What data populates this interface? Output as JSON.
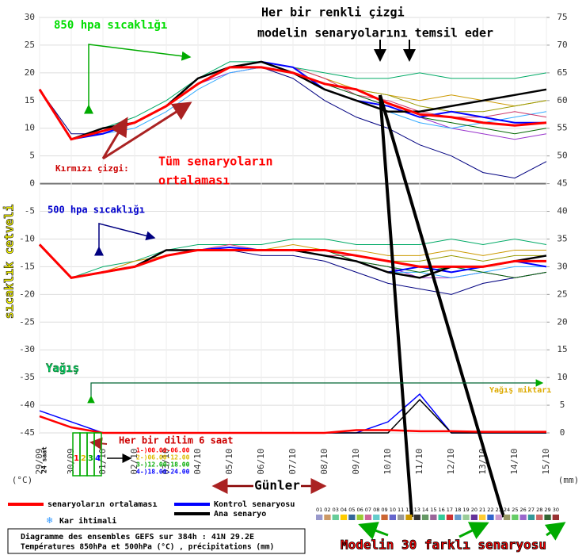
{
  "chart_data": {
    "type": "line",
    "x": [
      "29/09",
      "30/09",
      "01/10",
      "02/10",
      "03/10",
      "04/10",
      "05/10",
      "06/10",
      "07/10",
      "08/10",
      "09/10",
      "10/10",
      "11/10",
      "12/10",
      "13/10",
      "14/10",
      "15/10"
    ],
    "ylim": [
      -45,
      30
    ],
    "yticks": [
      30,
      25,
      20,
      15,
      10,
      5,
      0,
      -5,
      -10,
      -15,
      -20,
      -25,
      -30,
      -35,
      -40,
      -45
    ],
    "y2lim": [
      0,
      75
    ],
    "y2ticks": [
      75,
      70,
      65,
      60,
      55,
      50,
      45,
      40,
      35,
      30,
      25,
      20,
      15,
      10,
      5,
      0
    ],
    "ylabel": "(°C)",
    "y2label": "(mm)",
    "grid": true,
    "series": [
      {
        "name": "senaryoların ortalaması",
        "color": "#ff0000",
        "values_850": [
          17,
          8,
          9.5,
          11,
          14,
          18,
          21,
          21,
          20,
          18,
          17,
          14.5,
          12.5,
          12,
          11,
          10.5,
          11
        ],
        "values_500": [
          -11,
          -17,
          -16,
          -15,
          -13,
          -12,
          -12,
          -12,
          -12,
          -12,
          -13,
          -14,
          -15,
          -15,
          -15,
          -14,
          -14
        ],
        "precip": [
          3,
          1,
          0,
          0,
          0,
          0,
          0,
          0,
          0,
          0,
          0.5,
          0.5,
          0.3,
          0.3,
          0.2,
          0.2,
          0.2
        ]
      },
      {
        "name": "Kontrol senaryosu",
        "color": "#0000ff",
        "values_850": [
          17,
          8,
          9,
          11,
          14,
          18,
          21,
          22,
          21,
          17,
          15,
          14,
          12,
          13,
          12,
          11,
          11
        ],
        "values_500": [
          -11,
          -17,
          -16,
          -15,
          -13,
          -12,
          -11.5,
          -12,
          -12,
          -13,
          -14,
          -16,
          -15,
          -16,
          -15,
          -14,
          -15
        ],
        "precip": [
          4,
          2,
          0,
          0,
          0,
          0,
          0,
          0,
          0,
          0,
          0,
          2,
          7,
          0,
          0,
          0,
          0
        ]
      },
      {
        "name": "Ana senaryo",
        "color": "#000000",
        "values_850": [
          17,
          8,
          10,
          11,
          14,
          19,
          21,
          22,
          20,
          17,
          15,
          13,
          13,
          14,
          15,
          16,
          17
        ],
        "values_500": [
          -11,
          -17,
          -16,
          -15,
          -12,
          -12,
          -12,
          -12,
          -12,
          -13,
          -14,
          -16,
          -17,
          -15,
          -15,
          -14,
          -13
        ],
        "precip": [
          3,
          1,
          0,
          0,
          0,
          0,
          0,
          0,
          0,
          0,
          0,
          0,
          6,
          0,
          0,
          0,
          0
        ]
      }
    ],
    "ensemble": [
      {
        "color": "#00aa66",
        "values_850": [
          17,
          8,
          10,
          12,
          15,
          19,
          22,
          22,
          21,
          20,
          19,
          19,
          20,
          19,
          19,
          19,
          20
        ],
        "values_500": [
          -11,
          -17,
          -15,
          -14,
          -12,
          -11,
          -11,
          -11,
          -10,
          -10,
          -11,
          -11,
          -11,
          -10,
          -11,
          -10,
          -11
        ]
      },
      {
        "color": "#000080",
        "values_850": [
          17,
          9,
          9,
          11,
          14,
          18,
          21,
          21,
          19,
          15,
          12,
          10,
          7,
          5,
          2,
          1,
          4
        ],
        "values_500": [
          -11,
          -17,
          -16,
          -15,
          -13,
          -12,
          -12,
          -13,
          -13,
          -14,
          -16,
          -18,
          -19,
          -20,
          -18,
          -17,
          -16
        ]
      },
      {
        "color": "#cc9900",
        "values_850": [
          17,
          8,
          9,
          11,
          14,
          18,
          21,
          22,
          21,
          19,
          17,
          16,
          15,
          16,
          15,
          14,
          15
        ],
        "values_500": [
          -11,
          -17,
          -16,
          -14,
          -13,
          -12,
          -12,
          -12,
          -11,
          -12,
          -12,
          -13,
          -13,
          -12,
          -13,
          -12,
          -12
        ]
      },
      {
        "color": "#9933cc",
        "values_850": [
          17,
          8,
          10,
          11,
          14,
          18,
          20,
          21,
          20,
          18,
          16,
          14,
          12,
          10,
          9,
          8,
          9
        ],
        "values_500": [
          -11,
          -17,
          -16,
          -15,
          -13,
          -12,
          -12,
          -12,
          -12,
          -13,
          -14,
          -15,
          -17,
          -17,
          -16,
          -17,
          -16
        ]
      },
      {
        "color": "#33aaff",
        "values_850": [
          17,
          8,
          9,
          10,
          13,
          17,
          20,
          21,
          20,
          17,
          15,
          13,
          11,
          10,
          11,
          12,
          13
        ],
        "values_500": [
          -11,
          -17,
          -16,
          -15,
          -13,
          -12,
          -12,
          -12,
          -12,
          -13,
          -14,
          -16,
          -16,
          -17,
          -16,
          -15,
          -15
        ]
      },
      {
        "color": "#999900",
        "values_850": [
          17,
          8,
          9,
          11,
          14,
          18,
          21,
          21,
          20,
          18,
          17,
          16,
          14,
          13,
          13,
          14,
          15
        ],
        "values_500": [
          -11,
          -17,
          -16,
          -15,
          -13,
          -12,
          -12,
          -12,
          -12,
          -12,
          -13,
          -14,
          -14,
          -13,
          -14,
          -13,
          -13
        ]
      },
      {
        "color": "#cc3366",
        "values_850": [
          17,
          8,
          10,
          11,
          14,
          18,
          21,
          22,
          21,
          19,
          16,
          15,
          13,
          12,
          12,
          13,
          12
        ],
        "values_500": [
          -11,
          -17,
          -16,
          -15,
          -13,
          -12,
          -11,
          -12,
          -12,
          -13,
          -13,
          -14,
          -15,
          -16,
          -15,
          -14,
          -15
        ]
      },
      {
        "color": "#006600",
        "values_850": [
          17,
          8,
          9,
          11,
          14,
          18,
          21,
          22,
          20,
          18,
          16,
          14,
          12,
          11,
          10,
          9,
          10
        ],
        "values_500": [
          -11,
          -17,
          -16,
          -15,
          -13,
          -12,
          -12,
          -12,
          -12,
          -12,
          -14,
          -15,
          -16,
          -15,
          -16,
          -17,
          -16
        ]
      }
    ],
    "members": [
      "01",
      "02",
      "03",
      "04",
      "05",
      "06",
      "07",
      "08",
      "09",
      "10",
      "11",
      "12",
      "13",
      "14",
      "15",
      "16",
      "17",
      "18",
      "19",
      "20",
      "21",
      "22",
      "23",
      "24",
      "25",
      "26",
      "27",
      "28",
      "29",
      "30"
    ],
    "member_colors": [
      "#9999cc",
      "#cc9966",
      "#66cc99",
      "#ffcc00",
      "#336699",
      "#99cc33",
      "#cc6699",
      "#66cccc",
      "#cc6633",
      "#6666cc",
      "#999999",
      "#cc9900",
      "#333333",
      "#669966",
      "#996699",
      "#33cc99",
      "#cc3333",
      "#6699cc",
      "#99cc99",
      "#663399",
      "#ffcc33",
      "#3366cc",
      "#cc99cc",
      "#999966",
      "#66cc66",
      "#9966cc",
      "#339999",
      "#cc6666",
      "#336633",
      "#993333"
    ],
    "legend_extra": "Kar ihtimali",
    "footer": [
      "Diagramme des ensembles GEFS sur 384h : 41N 29.2E",
      "Températures 850hPa et 500hPa (°C) , précipitations (mm)"
    ],
    "annotations": [
      {
        "text": "Her bir renkli çizgi",
        "color": "#000000"
      },
      {
        "text": "modelin senaryolarını temsil eder",
        "color": "#000000"
      },
      {
        "text": "850 hpa sıcaklığı",
        "color": "#00dd00"
      },
      {
        "text": "500 hpa sıcaklığı",
        "color": "#0000cc"
      },
      {
        "text": "Kırmızı çizgi:",
        "color": "#cc0000"
      },
      {
        "text": "Tüm senaryoların",
        "color": "#ff0000"
      },
      {
        "text": "ortalaması",
        "color": "#ff0000"
      },
      {
        "text": "Yağış",
        "color": "#00cc66"
      },
      {
        "text": "Yağış miktarı",
        "color": "#ddaa00"
      },
      {
        "text": "Her bir dilim 6 saat",
        "color": "#cc0000"
      },
      {
        "text": "24 saat",
        "color": "#000000"
      },
      {
        "text": "Günler",
        "color": "#000000"
      },
      {
        "text": "sıcaklık cetveli",
        "color": "#ffff00"
      },
      {
        "text": "Modelin 30 farklı senaryosu",
        "color": "#ff0000"
      }
    ],
    "slices": [
      "1",
      "2",
      "3",
      "4"
    ],
    "slice_times": [
      {
        "text": "1-)00.00-06.00",
        "color": "#ff0000"
      },
      {
        "text": "2-)06.00-12.00",
        "color": "#ddbb00"
      },
      {
        "text": "3-)12.00-18.00",
        "color": "#00aa00"
      },
      {
        "text": "4-)18.00-24.00",
        "color": "#0000ff"
      }
    ]
  }
}
